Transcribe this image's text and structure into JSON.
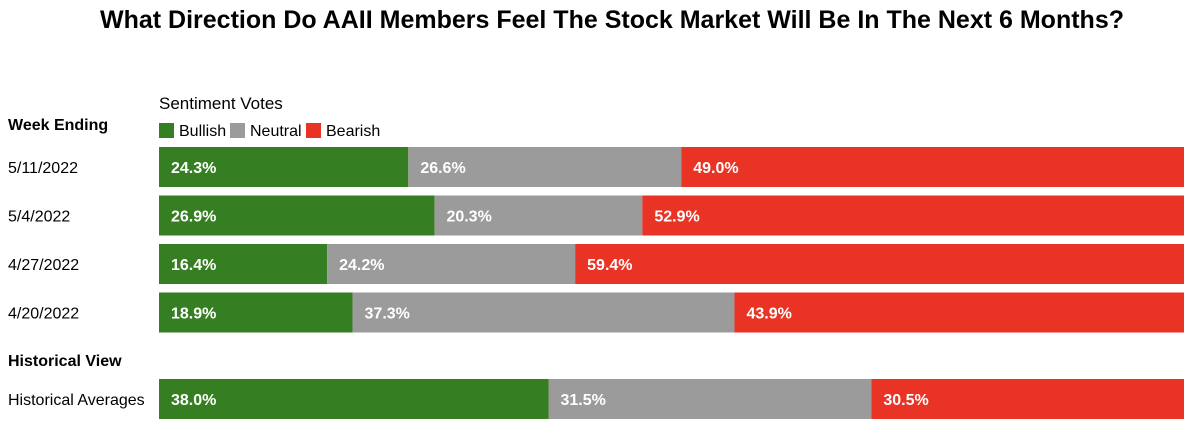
{
  "chart_data": {
    "type": "bar",
    "orientation": "horizontal",
    "stacked": true,
    "normalized_to": 100,
    "title": "What Direction Do AAII Members Feel The Stock Market Will Be In The Next 6 Months?",
    "legend_title": "Sentiment Votes",
    "legend_placement": "top-left",
    "grid": false,
    "series": [
      {
        "name": "Bullish",
        "color": "#367e22"
      },
      {
        "name": "Neutral",
        "color": "#9b9b9b"
      },
      {
        "name": "Bearish",
        "color": "#e83325"
      }
    ],
    "groups": [
      {
        "heading": "Week Ending",
        "rows": [
          {
            "category": "5/11/2022",
            "values": [
              24.3,
              26.6,
              49.0
            ],
            "labels": [
              "24.3%",
              "26.6%",
              "49.0%"
            ]
          },
          {
            "category": "5/4/2022",
            "values": [
              26.9,
              20.3,
              52.9
            ],
            "labels": [
              "26.9%",
              "20.3%",
              "52.9%"
            ]
          },
          {
            "category": "4/27/2022",
            "values": [
              16.4,
              24.2,
              59.4
            ],
            "labels": [
              "16.4%",
              "24.2%",
              "59.4%"
            ]
          },
          {
            "category": "4/20/2022",
            "values": [
              18.9,
              37.3,
              43.9
            ],
            "labels": [
              "18.9%",
              "37.3%",
              "43.9%"
            ]
          }
        ]
      },
      {
        "heading": "Historical View",
        "rows": [
          {
            "category": "Historical Averages",
            "values": [
              38.0,
              31.5,
              30.5
            ],
            "labels": [
              "38.0%",
              "31.5%",
              "30.5%"
            ]
          }
        ]
      }
    ]
  }
}
